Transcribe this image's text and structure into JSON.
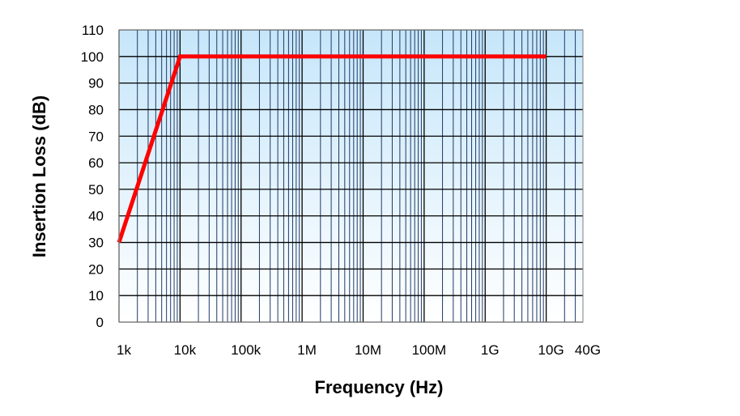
{
  "chart_data": {
    "type": "line",
    "title": "",
    "xlabel": "Frequency (Hz)",
    "ylabel": "Insertion Loss (dB)",
    "x_scale": "log",
    "xlim": [
      1000,
      40000000000
    ],
    "ylim": [
      0,
      110
    ],
    "y_ticks": [
      0,
      10,
      20,
      30,
      40,
      50,
      60,
      70,
      80,
      90,
      100,
      110
    ],
    "x_ticks": [
      {
        "value": 1000,
        "label": "1k"
      },
      {
        "value": 10000,
        "label": "10k"
      },
      {
        "value": 100000,
        "label": "100k"
      },
      {
        "value": 1000000,
        "label": "1M"
      },
      {
        "value": 10000000,
        "label": "10M"
      },
      {
        "value": 100000000,
        "label": "100M"
      },
      {
        "value": 1000000000,
        "label": "1G"
      },
      {
        "value": 10000000000,
        "label": "10G"
      },
      {
        "value": 40000000000,
        "label": "40G"
      }
    ],
    "grid": true,
    "series": [
      {
        "color": "#ff0000",
        "x": [
          1000,
          10000,
          10000000000
        ],
        "y": [
          30,
          100,
          100
        ]
      }
    ],
    "colors": {
      "plot_bg_top": "#c6e6fa",
      "plot_bg_bottom": "#ffffff",
      "major_grid": "#000000",
      "minor_grid": "#1f3a66",
      "border": "#7f7f7f"
    }
  }
}
